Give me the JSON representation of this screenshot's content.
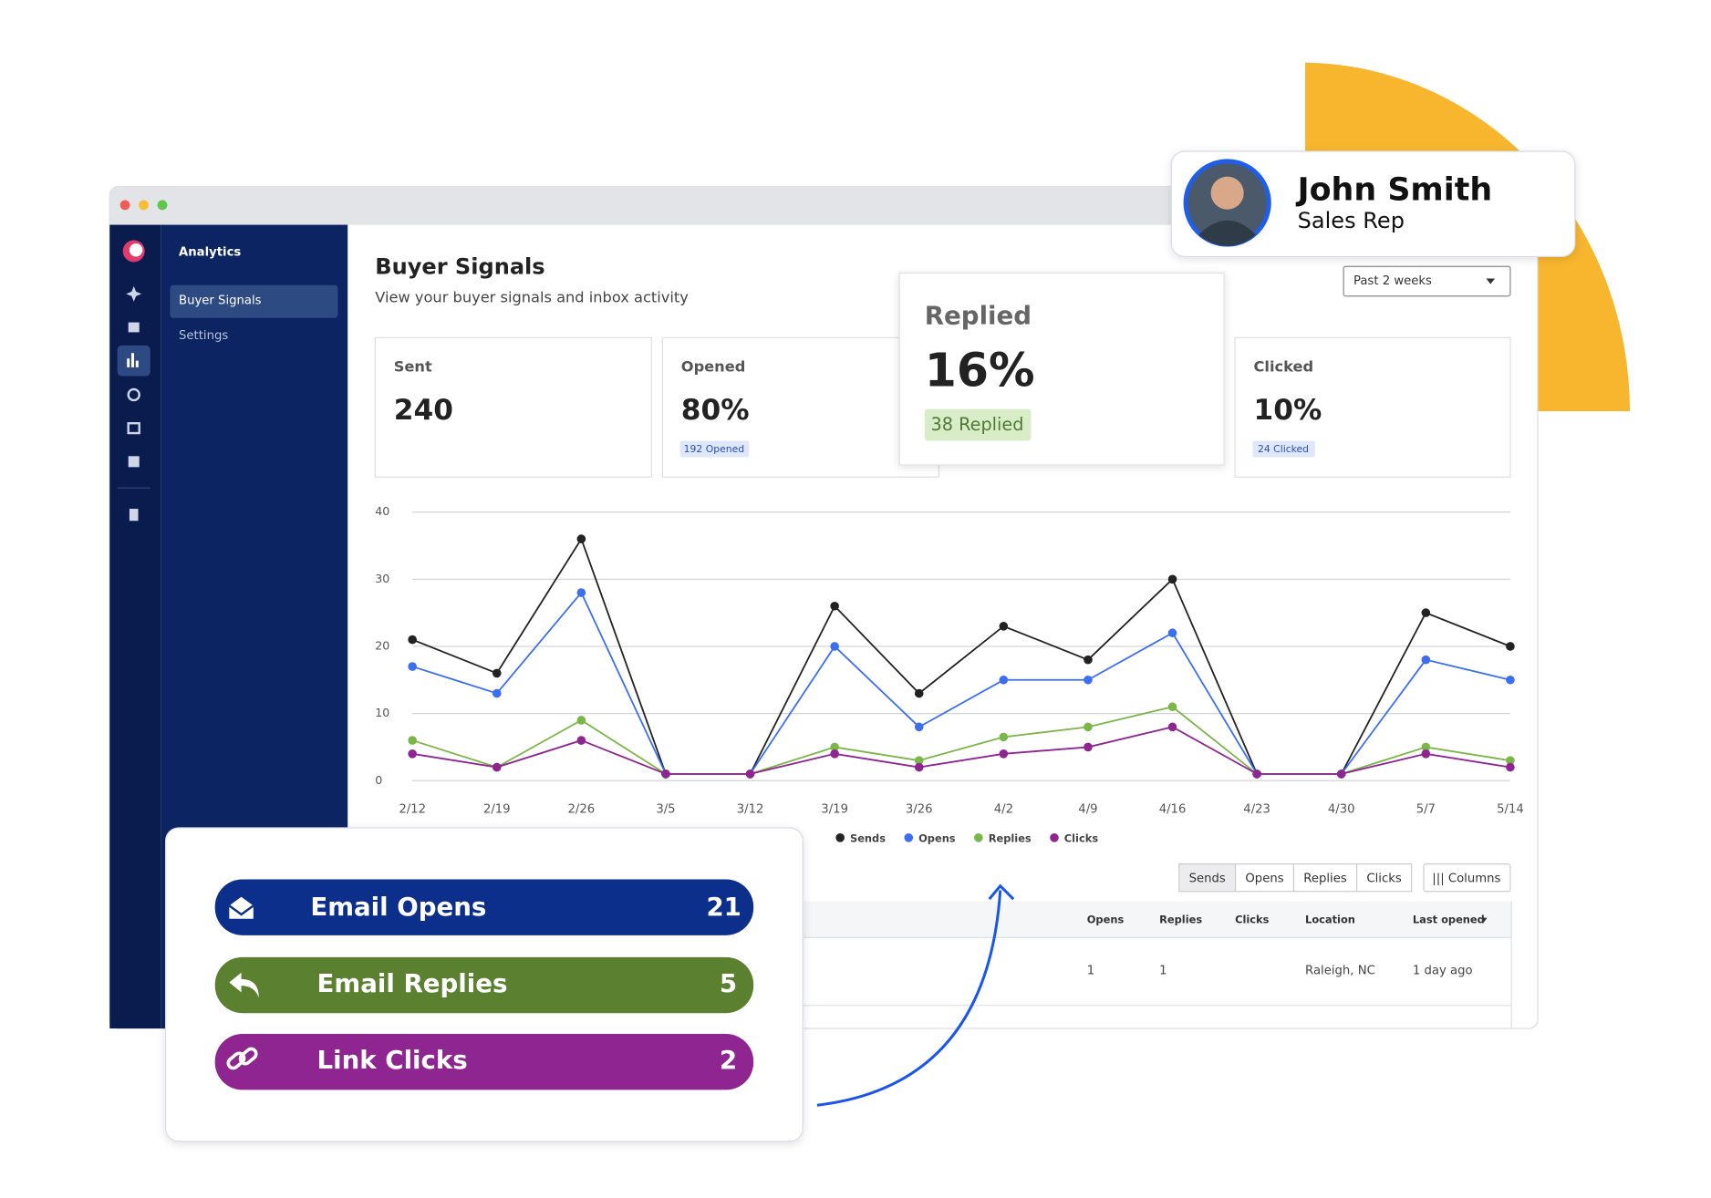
{
  "sidebar": {
    "title": "Analytics",
    "items": [
      "Buyer Signals",
      "Settings"
    ]
  },
  "header": {
    "title": "Buyer Signals",
    "subtitle": "View your buyer signals and inbox activity",
    "range": "Past 2 weeks"
  },
  "cards": [
    {
      "label": "Sent",
      "value": "240"
    },
    {
      "label": "Opened",
      "value": "80%",
      "note": "192 Opened"
    },
    {
      "label": "Replied",
      "value": "16%",
      "note": "38 Replied"
    },
    {
      "label": "Clicked",
      "value": "10%",
      "note": "24 Clicked"
    }
  ],
  "chart": {
    "type": "line",
    "x": [
      "2/12",
      "2/19",
      "2/26",
      "3/5",
      "3/12",
      "3/19",
      "3/26",
      "4/2",
      "4/9",
      "4/16",
      "4/23",
      "4/30",
      "5/7",
      "5/14"
    ],
    "series": [
      {
        "name": "Sends",
        "color": "#222222",
        "values": [
          21,
          16,
          36,
          1,
          1,
          26,
          13,
          23,
          18,
          30,
          1,
          1,
          25,
          20
        ]
      },
      {
        "name": "Opens",
        "color": "#3b6ff0",
        "values": [
          17,
          13,
          28,
          1,
          1,
          20,
          8,
          15,
          15,
          22,
          1,
          1,
          18,
          15
        ]
      },
      {
        "name": "Replies",
        "color": "#7ab648",
        "values": [
          6,
          2,
          9,
          1,
          1,
          5,
          3,
          6.5,
          8,
          11,
          1,
          1,
          5,
          3
        ]
      },
      {
        "name": "Clicks",
        "color": "#8e2591",
        "values": [
          4,
          2,
          6,
          1,
          1,
          4,
          2,
          4,
          5,
          8,
          1,
          1,
          4,
          2
        ]
      }
    ],
    "ylim": [
      0,
      40
    ],
    "yticks": [
      0,
      10,
      20,
      30,
      40
    ],
    "grid": true
  },
  "table": {
    "tabs": [
      "Sends",
      "Opens",
      "Replies",
      "Clicks"
    ],
    "columns_button": "||| Columns",
    "headers": [
      "Opens",
      "Replies",
      "Clicks",
      "Location",
      "Last opened"
    ],
    "rows": [
      {
        "opens": "1",
        "replies": "1",
        "location": "Raleigh, NC",
        "last_opened": "1 day ago"
      }
    ]
  },
  "profile": {
    "name": "John Smith",
    "role": "Sales Rep"
  },
  "summary": [
    {
      "label": "Email Opens",
      "count": 21
    },
    {
      "label": "Email Replies",
      "count": 5
    },
    {
      "label": "Link Clicks",
      "count": 2
    }
  ]
}
